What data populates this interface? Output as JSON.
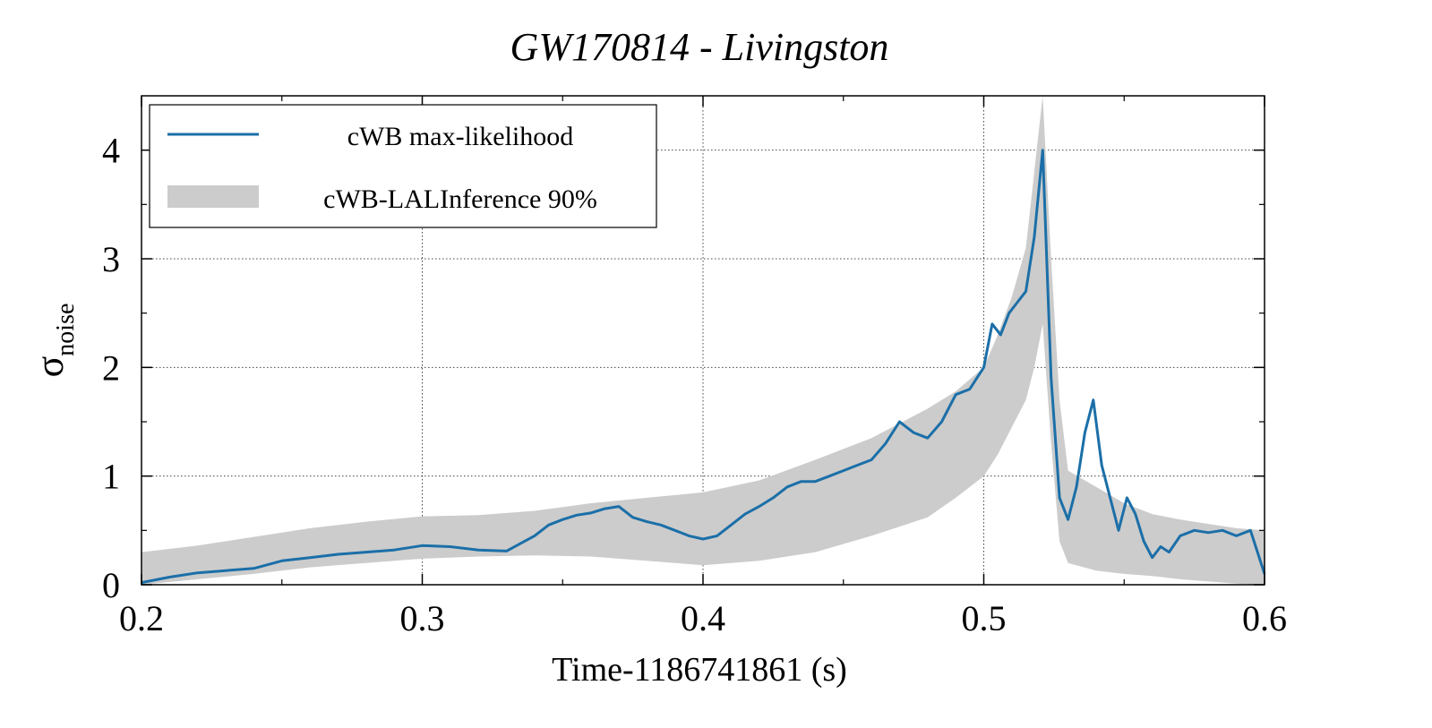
{
  "chart_data": {
    "type": "line",
    "title": "GW170814 - Livingston",
    "xlabel": "Time-1186741861 (s)",
    "ylabel_symbol": "σ",
    "ylabel_subscript": "noise",
    "xlim": [
      0.2,
      0.6
    ],
    "ylim": [
      0,
      4.5
    ],
    "xticks": [
      0.2,
      0.3,
      0.4,
      0.5,
      0.6
    ],
    "xtick_labels": [
      "0.2",
      "0.3",
      "0.4",
      "0.5",
      "0.6"
    ],
    "yticks": [
      0,
      1,
      2,
      3,
      4
    ],
    "ytick_labels": [
      "0",
      "1",
      "2",
      "3",
      "4"
    ],
    "grid": true,
    "legend_position": "top-left",
    "colors": {
      "line": "#1b6fa8",
      "band": "#cccccc"
    },
    "series": [
      {
        "name": "cWB max-likelihood",
        "kind": "line",
        "x": [
          0.2,
          0.21,
          0.22,
          0.23,
          0.24,
          0.25,
          0.26,
          0.27,
          0.28,
          0.29,
          0.3,
          0.31,
          0.32,
          0.33,
          0.335,
          0.34,
          0.345,
          0.35,
          0.355,
          0.36,
          0.365,
          0.37,
          0.375,
          0.38,
          0.385,
          0.39,
          0.395,
          0.4,
          0.405,
          0.41,
          0.415,
          0.42,
          0.425,
          0.43,
          0.435,
          0.44,
          0.445,
          0.45,
          0.455,
          0.46,
          0.465,
          0.47,
          0.475,
          0.48,
          0.485,
          0.49,
          0.495,
          0.5,
          0.503,
          0.506,
          0.509,
          0.512,
          0.515,
          0.518,
          0.521,
          0.524,
          0.527,
          0.53,
          0.533,
          0.536,
          0.539,
          0.542,
          0.545,
          0.548,
          0.551,
          0.554,
          0.557,
          0.56,
          0.563,
          0.566,
          0.57,
          0.575,
          0.58,
          0.585,
          0.59,
          0.595,
          0.6
        ],
        "values": [
          0.02,
          0.07,
          0.11,
          0.13,
          0.15,
          0.22,
          0.25,
          0.28,
          0.3,
          0.32,
          0.36,
          0.35,
          0.32,
          0.31,
          0.38,
          0.45,
          0.55,
          0.6,
          0.64,
          0.66,
          0.7,
          0.72,
          0.62,
          0.58,
          0.55,
          0.5,
          0.45,
          0.42,
          0.45,
          0.55,
          0.65,
          0.72,
          0.8,
          0.9,
          0.95,
          0.95,
          1.0,
          1.05,
          1.1,
          1.15,
          1.3,
          1.5,
          1.4,
          1.35,
          1.5,
          1.75,
          1.8,
          2.0,
          2.4,
          2.3,
          2.5,
          2.6,
          2.7,
          3.2,
          4.0,
          1.9,
          0.8,
          0.6,
          0.9,
          1.4,
          1.7,
          1.1,
          0.8,
          0.5,
          0.8,
          0.65,
          0.4,
          0.25,
          0.35,
          0.3,
          0.45,
          0.5,
          0.48,
          0.5,
          0.45,
          0.5,
          0.1
        ]
      },
      {
        "name": "cWB-LALInference 90%",
        "kind": "band",
        "x": [
          0.2,
          0.22,
          0.24,
          0.26,
          0.28,
          0.3,
          0.32,
          0.34,
          0.36,
          0.38,
          0.4,
          0.42,
          0.44,
          0.46,
          0.48,
          0.49,
          0.5,
          0.505,
          0.51,
          0.515,
          0.518,
          0.521,
          0.524,
          0.527,
          0.53,
          0.54,
          0.55,
          0.56,
          0.57,
          0.58,
          0.59,
          0.6
        ],
        "lower": [
          0.0,
          0.05,
          0.1,
          0.16,
          0.2,
          0.24,
          0.26,
          0.27,
          0.26,
          0.22,
          0.18,
          0.22,
          0.3,
          0.45,
          0.62,
          0.8,
          1.0,
          1.2,
          1.45,
          1.7,
          2.0,
          2.4,
          1.3,
          0.4,
          0.2,
          0.13,
          0.1,
          0.08,
          0.05,
          0.03,
          0.01,
          0.0
        ],
        "upper": [
          0.3,
          0.36,
          0.44,
          0.52,
          0.58,
          0.63,
          0.64,
          0.68,
          0.75,
          0.8,
          0.85,
          0.96,
          1.15,
          1.35,
          1.62,
          1.78,
          2.0,
          2.3,
          2.65,
          3.1,
          3.8,
          4.6,
          3.0,
          1.7,
          1.05,
          0.9,
          0.75,
          0.65,
          0.6,
          0.56,
          0.52,
          0.5
        ]
      }
    ]
  }
}
